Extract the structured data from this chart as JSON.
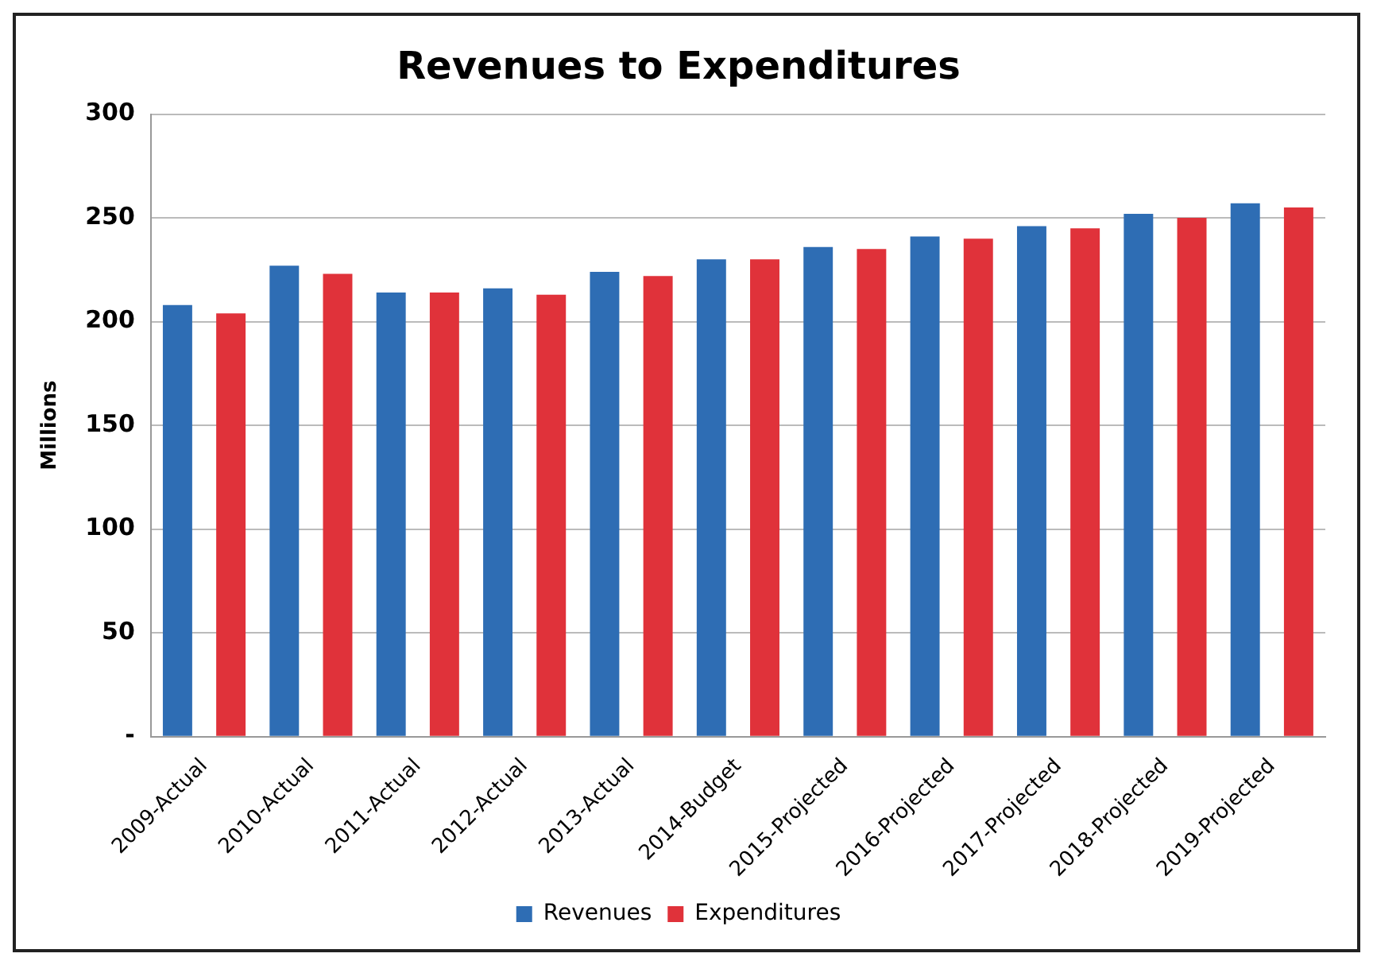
{
  "chart_data": {
    "type": "bar",
    "title": "Revenues to Expenditures",
    "ylabel": "Millions",
    "categories": [
      "2009-Actual",
      "2010-Actual",
      "2011-Actual",
      "2012-Actual",
      "2013-Actual",
      "2014-Budget",
      "2015-Projected",
      "2016-Projected",
      "2017-Projected",
      "2018-Projected",
      "2019-Projected"
    ],
    "series": [
      {
        "name": "Revenues",
        "color": "#2e6db4",
        "values": [
          208,
          227,
          214,
          216,
          224,
          230,
          236,
          241,
          246,
          252,
          257
        ]
      },
      {
        "name": "Expenditures",
        "color": "#e0323a",
        "values": [
          204,
          223,
          214,
          213,
          222,
          230,
          235,
          240,
          245,
          250,
          255
        ]
      }
    ],
    "ylim": [
      0,
      300
    ],
    "yticks": [
      {
        "value": 0,
        "label": "-"
      },
      50,
      100,
      150,
      200,
      250,
      300
    ],
    "grid": "y",
    "legend": "bottom"
  }
}
